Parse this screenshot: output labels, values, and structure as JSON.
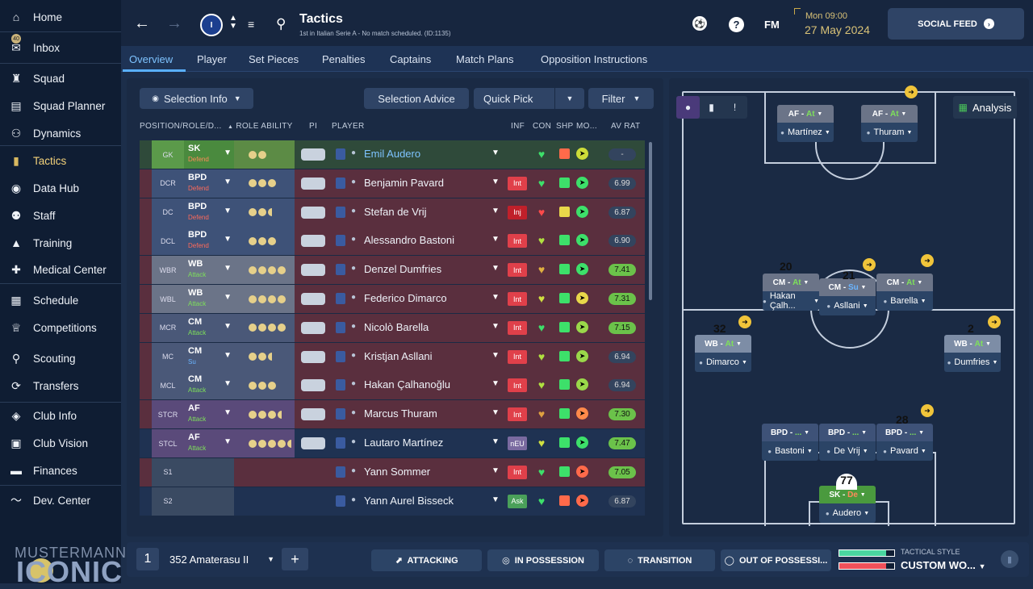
{
  "sidebar": {
    "items": [
      {
        "label": "Home",
        "icon": "home-icon",
        "glyph": "⌂"
      },
      {
        "label": "Inbox",
        "icon": "inbox-icon",
        "glyph": "✉",
        "badge": "40"
      },
      {
        "label": "Squad",
        "icon": "shirt-icon",
        "glyph": "♜"
      },
      {
        "label": "Squad Planner",
        "icon": "clipboard-icon",
        "glyph": "▤"
      },
      {
        "label": "Dynamics",
        "icon": "people-icon",
        "glyph": "⚇"
      },
      {
        "label": "Tactics",
        "icon": "tactics-icon",
        "glyph": "▮"
      },
      {
        "label": "Data Hub",
        "icon": "datahub-icon",
        "glyph": "◉"
      },
      {
        "label": "Staff",
        "icon": "staff-icon",
        "glyph": "⚉"
      },
      {
        "label": "Training",
        "icon": "training-icon",
        "glyph": "▲"
      },
      {
        "label": "Medical Center",
        "icon": "medical-icon",
        "glyph": "✚"
      },
      {
        "label": "Schedule",
        "icon": "calendar-icon",
        "glyph": "▦"
      },
      {
        "label": "Competitions",
        "icon": "trophy-icon",
        "glyph": "♕"
      },
      {
        "label": "Scouting",
        "icon": "search-icon",
        "glyph": "⚲"
      },
      {
        "label": "Transfers",
        "icon": "transfer-icon",
        "glyph": "⟳"
      },
      {
        "label": "Club Info",
        "icon": "shield-icon",
        "glyph": "◈"
      },
      {
        "label": "Club Vision",
        "icon": "briefcase-icon",
        "glyph": "▣"
      },
      {
        "label": "Finances",
        "icon": "money-icon",
        "glyph": "▬"
      },
      {
        "label": "Dev. Center",
        "icon": "trend-icon",
        "glyph": "〜"
      }
    ],
    "brand_top": "MUSTERMANN",
    "brand_bottom": "ICONIC"
  },
  "topbar": {
    "title": "Tactics",
    "subtitle": "1st in Italian Serie A - No match scheduled. (ID:1135)",
    "fm": "FM",
    "date_line1": "Mon 09:00",
    "date_line2": "27 May 2024",
    "social": "SOCIAL FEED"
  },
  "tabs": [
    "Overview",
    "Player",
    "Set Pieces",
    "Penalties",
    "Captains",
    "Match Plans",
    "Opposition Instructions"
  ],
  "toolbar": {
    "selection_info": "Selection Info",
    "selection_advice": "Selection Advice",
    "quick_pick": "Quick Pick",
    "filter": "Filter"
  },
  "headers": {
    "position": "POSITION/ROLE/D...",
    "ability": "ROLE ABILITY",
    "pi": "PI",
    "player": "PLAYER",
    "inf": "INF",
    "con": "CON",
    "shp": "SHP",
    "mov": "MO...",
    "avr": "AV RAT"
  },
  "rows": [
    {
      "pos": "GK",
      "role": "SK",
      "duty": "Defend",
      "stars": 2,
      "half": false,
      "name": "Emil Audero",
      "inf": "",
      "avr": "-",
      "colors": {
        "bg": "#2f4a3a",
        "pos": "#5b9a4a",
        "role": "#4a8a3e",
        "abil": "#5c8b45",
        "duty": "#ff8a5a"
      },
      "shp": "#ff6a4a",
      "mov": "#cddc39",
      "avrbg": "#33445e",
      "avrfg": "#ccc",
      "con": "#3de06a"
    },
    {
      "pos": "DCR",
      "role": "BPD",
      "duty": "Defend",
      "stars": 3,
      "half": false,
      "name": "Benjamin Pavard",
      "inf": "Int",
      "avr": "6.99",
      "colors": {
        "bg": "#5a2f3e",
        "pos": "#3e5278",
        "role": "#3e5278",
        "abil": "#3e5278",
        "duty": "#ff6a5a"
      },
      "shp": "#3de06a",
      "mov": "#3de06a",
      "avrbg": "#33445e",
      "avrfg": "#ddd",
      "con": "#3de06a"
    },
    {
      "pos": "DC",
      "role": "BPD",
      "duty": "Defend",
      "stars": 2,
      "half": true,
      "name": "Stefan de Vrij",
      "inf": "Inj",
      "avr": "6.87",
      "colors": {
        "bg": "#5a2f3e",
        "pos": "#3e5278",
        "role": "#3e5278",
        "abil": "#3e5278",
        "duty": "#ff6a5a"
      },
      "shp": "#e8d84a",
      "mov": "#3de06a",
      "avrbg": "#33445e",
      "avrfg": "#ddd",
      "con": "#ff4a4a"
    },
    {
      "pos": "DCL",
      "role": "BPD",
      "duty": "Defend",
      "stars": 3,
      "half": false,
      "name": "Alessandro Bastoni",
      "inf": "Int",
      "avr": "6.90",
      "colors": {
        "bg": "#5a2f3e",
        "pos": "#3e5278",
        "role": "#3e5278",
        "abil": "#3e5278",
        "duty": "#ff6a5a"
      },
      "shp": "#3de06a",
      "mov": "#3de06a",
      "avrbg": "#33445e",
      "avrfg": "#ddd",
      "con": "#b0e040"
    },
    {
      "pos": "WBR",
      "role": "WB",
      "duty": "Attack",
      "stars": 4,
      "half": false,
      "name": "Denzel Dumfries",
      "inf": "Int",
      "avr": "7.41",
      "colors": {
        "bg": "#5a2f3e",
        "pos": "#6b7488",
        "role": "#6b7488",
        "abil": "#6b7488",
        "duty": "#7ee05a"
      },
      "shp": "#3de06a",
      "mov": "#3de06a",
      "avrbg": "#6bc24a",
      "avrfg": "#111",
      "con": "#e0b040"
    },
    {
      "pos": "WBL",
      "role": "WB",
      "duty": "Attack",
      "stars": 4,
      "half": false,
      "name": "Federico Dimarco",
      "inf": "Int",
      "avr": "7.31",
      "colors": {
        "bg": "#5a2f3e",
        "pos": "#6b7488",
        "role": "#6b7488",
        "abil": "#6b7488",
        "duty": "#7ee05a"
      },
      "shp": "#3de06a",
      "mov": "#e8d84a",
      "avrbg": "#6bc24a",
      "avrfg": "#111",
      "con": "#d0e040"
    },
    {
      "pos": "MCR",
      "role": "CM",
      "duty": "Attack",
      "stars": 4,
      "half": false,
      "name": "Nicolò Barella",
      "inf": "Int",
      "avr": "7.15",
      "colors": {
        "bg": "#5a2f3e",
        "pos": "#4a5878",
        "role": "#4a5878",
        "abil": "#4a5878",
        "duty": "#7ee05a"
      },
      "shp": "#3de06a",
      "mov": "#9ad84a",
      "avrbg": "#6bc24a",
      "avrfg": "#111",
      "con": "#3de06a"
    },
    {
      "pos": "MC",
      "role": "CM",
      "duty": "Su",
      "stars": 2,
      "half": true,
      "name": "Kristjan Asllani",
      "inf": "Int",
      "avr": "6.94",
      "colors": {
        "bg": "#5a2f3e",
        "pos": "#4a5878",
        "role": "#4a5878",
        "abil": "#4a5878",
        "duty": "#6ab4ff"
      },
      "shp": "#3de06a",
      "mov": "#9ad84a",
      "avrbg": "#33445e",
      "avrfg": "#ddd",
      "con": "#b0e040"
    },
    {
      "pos": "MCL",
      "role": "CM",
      "duty": "Attack",
      "stars": 3,
      "half": false,
      "name": "Hakan Çalhanoğlu",
      "inf": "Int",
      "avr": "6.94",
      "colors": {
        "bg": "#5a2f3e",
        "pos": "#4a5878",
        "role": "#4a5878",
        "abil": "#4a5878",
        "duty": "#7ee05a"
      },
      "shp": "#3de06a",
      "mov": "#9ad84a",
      "avrbg": "#33445e",
      "avrfg": "#ddd",
      "con": "#b0e040"
    },
    {
      "pos": "STCR",
      "role": "AF",
      "duty": "Attack",
      "stars": 3,
      "half": true,
      "name": "Marcus Thuram",
      "inf": "Int",
      "avr": "7.30",
      "colors": {
        "bg": "#5a2f3e",
        "pos": "#5a4a7a",
        "role": "#5a4a7a",
        "abil": "#5a4a7a",
        "duty": "#7ee05a"
      },
      "shp": "#3de06a",
      "mov": "#ff8a4a",
      "avrbg": "#6bc24a",
      "avrfg": "#111",
      "con": "#e0a040"
    },
    {
      "pos": "STCL",
      "role": "AF",
      "duty": "Attack",
      "stars": 4,
      "half": true,
      "name": "Lautaro Martínez",
      "inf": "nEU",
      "avr": "7.47",
      "colors": {
        "bg": "#1f3252",
        "pos": "#5a4a7a",
        "role": "#5a4a7a",
        "abil": "#5a4a7a",
        "duty": "#7ee05a"
      },
      "shp": "#3de06a",
      "mov": "#3de06a",
      "avrbg": "#6bc24a",
      "avrfg": "#111",
      "con": "#d0e040"
    },
    {
      "pos": "S1",
      "role": "",
      "duty": "",
      "stars": 0,
      "half": false,
      "name": "Yann Sommer",
      "inf": "Int",
      "avr": "7.05",
      "colors": {
        "bg": "#5a2f3e",
        "pos": "#3a4a62",
        "role": "#3a4a62",
        "abil": "#5a2f3e",
        "duty": "#fff"
      },
      "shp": "#3de06a",
      "mov": "#ff6a4a",
      "avrbg": "#6bc24a",
      "avrfg": "#111",
      "con": "#3de06a"
    },
    {
      "pos": "S2",
      "role": "",
      "duty": "",
      "stars": 0,
      "half": false,
      "name": "Yann Aurel Bisseck",
      "inf": "Ask",
      "avr": "6.87",
      "colors": {
        "bg": "#1f3252",
        "pos": "#3a4a62",
        "role": "#3a4a62",
        "abil": "#1f3252",
        "duty": "#fff"
      },
      "shp": "#ff6a4a",
      "mov": "#ff6a4a",
      "avrbg": "#33445e",
      "avrfg": "#ddd",
      "con": "#3de06a"
    }
  ],
  "pitch": {
    "analysis": "Analysis",
    "cards": [
      {
        "role": "AF",
        "duty": "At",
        "name": "Martínez"
      },
      {
        "role": "AF",
        "duty": "At",
        "name": "Thuram"
      },
      {
        "role": "CM",
        "duty": "At",
        "name": "Hakan Çalh..."
      },
      {
        "role": "CM",
        "duty": "Su",
        "name": "Asllani"
      },
      {
        "role": "CM",
        "duty": "At",
        "name": "Barella"
      },
      {
        "role": "WB",
        "duty": "At",
        "name": "Dimarco"
      },
      {
        "role": "WB",
        "duty": "At",
        "name": "Dumfries"
      },
      {
        "role": "BPD",
        "duty": "...",
        "name": "Bastoni"
      },
      {
        "role": "BPD",
        "duty": "...",
        "name": "De Vrij"
      },
      {
        "role": "BPD",
        "duty": "...",
        "name": "Pavard"
      },
      {
        "role": "SK",
        "duty": "De",
        "name": "Audero"
      }
    ],
    "numbers": [
      "20",
      "21",
      "32",
      "2",
      "28",
      "77"
    ]
  },
  "bottom": {
    "slot": "1",
    "tactic": "352 Amaterasu II",
    "attacking": "ATTACKING",
    "in_possession": "IN POSSESSION",
    "transition": "TRANSITION",
    "out_of_possession": "OUT OF POSSESSI...",
    "style_label": "TACTICAL STYLE",
    "style_value": "CUSTOM WO...",
    "bar_plus": 0.85,
    "bar_minus": 0.85
  }
}
